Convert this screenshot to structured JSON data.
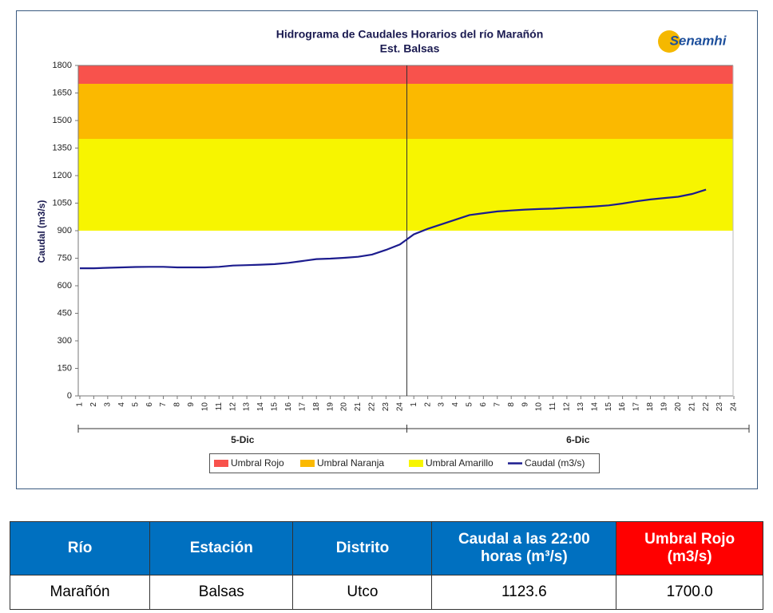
{
  "chart_data": {
    "type": "line",
    "title": "Hidrograma de Caudales Horarios del río Marañón",
    "subtitle": "Est. Balsas",
    "logo": "Senamhi",
    "ylabel": "Caudal  (m3/s)",
    "ylim": [
      0,
      1800
    ],
    "yticks": [
      0,
      150,
      300,
      450,
      600,
      750,
      900,
      1050,
      1200,
      1350,
      1500,
      1650,
      1800
    ],
    "x_groups": [
      "5-Dic",
      "6-Dic"
    ],
    "categories": [
      "1",
      "2",
      "3",
      "4",
      "5",
      "6",
      "7",
      "8",
      "9",
      "10",
      "11",
      "12",
      "13",
      "14",
      "15",
      "16",
      "17",
      "18",
      "19",
      "20",
      "21",
      "22",
      "23",
      "24",
      "1",
      "2",
      "3",
      "4",
      "5",
      "6",
      "7",
      "8",
      "9",
      "10",
      "11",
      "12",
      "13",
      "14",
      "15",
      "16",
      "17",
      "18",
      "19",
      "20",
      "21",
      "22",
      "23",
      "24"
    ],
    "bands": [
      {
        "name": "Umbral Rojo",
        "color": "#f8524c",
        "range": [
          1700,
          1800
        ]
      },
      {
        "name": "Umbral Naranja",
        "color": "#fbb900",
        "range": [
          1400,
          1700
        ]
      },
      {
        "name": "Umbral Amarillo",
        "color": "#f7f500",
        "range": [
          900,
          1400
        ]
      }
    ],
    "series": [
      {
        "name": "Caudal (m3/s)",
        "color": "#1c1c8e",
        "values": [
          695,
          695,
          698,
          700,
          702,
          703,
          703,
          700,
          700,
          700,
          703,
          710,
          712,
          715,
          718,
          725,
          735,
          745,
          748,
          752,
          758,
          770,
          795,
          825,
          880,
          910,
          935,
          960,
          985,
          995,
          1005,
          1010,
          1015,
          1018,
          1020,
          1025,
          1028,
          1032,
          1038,
          1048,
          1060,
          1070,
          1078,
          1085,
          1100,
          1123.6,
          null,
          null
        ]
      }
    ]
  },
  "table": {
    "header": [
      "Río",
      "Estación",
      "Distrito",
      "Caudal a las 22:00 horas (m³/s)",
      "Umbral Rojo (m3/s)"
    ],
    "rows": [
      [
        "Marañón",
        "Balsas",
        "Utco",
        "1123.6",
        "1700.0"
      ]
    ]
  }
}
